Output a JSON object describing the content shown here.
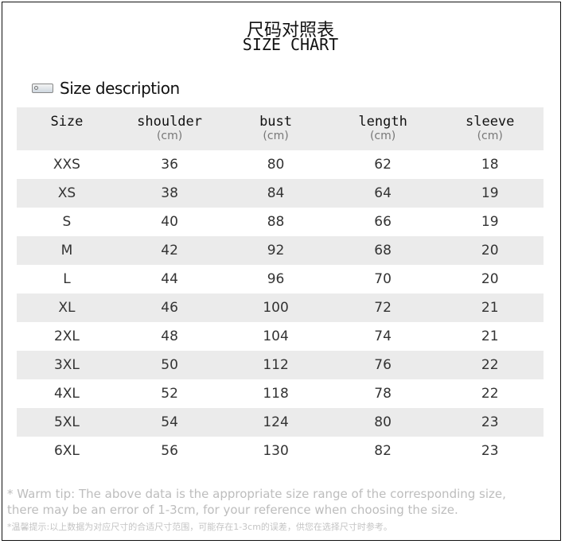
{
  "title_cn": "尺码对照表",
  "title_en": "SIZE CHART",
  "section_icon": "ruler-icon",
  "section_title": "Size description",
  "table": {
    "headers": [
      {
        "label": "Size",
        "unit": ""
      },
      {
        "label": "shoulder",
        "unit": "(cm)"
      },
      {
        "label": "bust",
        "unit": "(cm)"
      },
      {
        "label": "length",
        "unit": "(cm)"
      },
      {
        "label": "sleeve",
        "unit": "(cm)"
      }
    ],
    "rows": [
      [
        "XXS",
        "36",
        "80",
        "62",
        "18"
      ],
      [
        "XS",
        "38",
        "84",
        "64",
        "19"
      ],
      [
        "S",
        "40",
        "88",
        "66",
        "19"
      ],
      [
        "M",
        "42",
        "92",
        "68",
        "20"
      ],
      [
        "L",
        "44",
        "96",
        "70",
        "20"
      ],
      [
        "XL",
        "46",
        "100",
        "72",
        "21"
      ],
      [
        "2XL",
        "48",
        "104",
        "74",
        "21"
      ],
      [
        "3XL",
        "50",
        "112",
        "76",
        "22"
      ],
      [
        "4XL",
        "52",
        "118",
        "78",
        "22"
      ],
      [
        "5XL",
        "54",
        "124",
        "80",
        "23"
      ],
      [
        "6XL",
        "56",
        "130",
        "82",
        "23"
      ]
    ],
    "stripe_color": "#ebebeb"
  },
  "tip_en_1": "* Warm tip: The above data is the appropriate size range of the corresponding size,",
  "tip_en_2": "there may be an error of 1-3cm, for your reference when choosing the size.",
  "tip_cn": "*温馨提示:以上数据为对应尺寸的合适尺寸范围，可能存在1-3cm的误差，供您在选择尺寸时参考。"
}
